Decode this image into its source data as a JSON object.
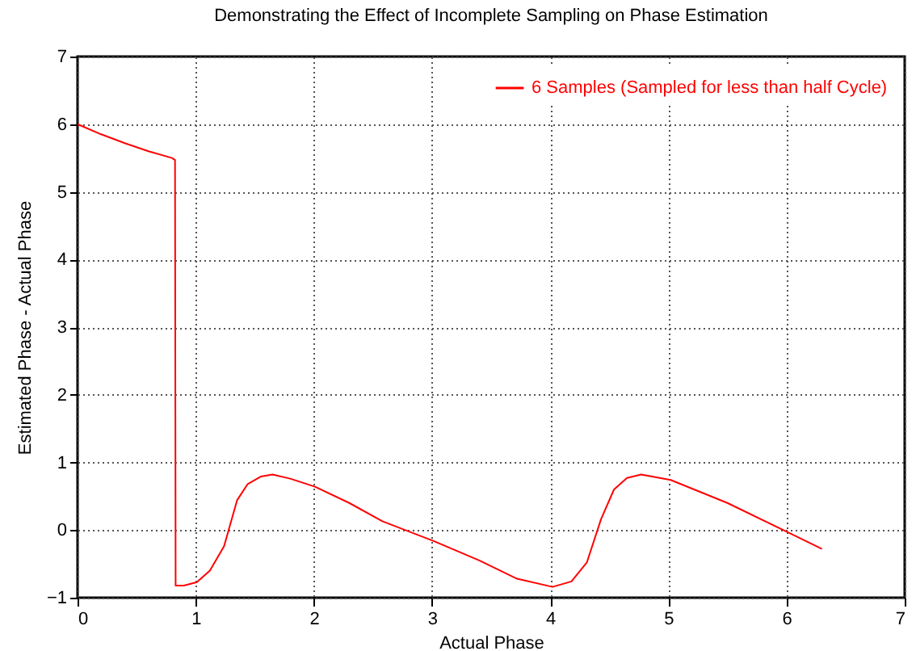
{
  "chart_data": {
    "type": "line",
    "title": "Demonstrating the Effect of Incomplete Sampling on Phase Estimation",
    "xlabel": "Actual Phase",
    "ylabel": "Estimated Phase - Actual Phase",
    "x": [
      0,
      0.2,
      0.4,
      0.6,
      0.8,
      0.825,
      0.83,
      0.9,
      1.01,
      1.12,
      1.24,
      1.35,
      1.44,
      1.55,
      1.65,
      1.8,
      2.01,
      2.3,
      2.58,
      3.01,
      3.4,
      3.72,
      4.02,
      4.18,
      4.31,
      4.43,
      4.54,
      4.65,
      4.77,
      5.02,
      5.5,
      6.02,
      6.3
    ],
    "series": [
      {
        "name": "6 Samples (Sampled for less than half Cycle)",
        "color": "#ff0000",
        "values": [
          6.0,
          5.85,
          5.72,
          5.6,
          5.5,
          5.47,
          -0.82,
          -0.82,
          -0.77,
          -0.6,
          -0.24,
          0.44,
          0.68,
          0.79,
          0.82,
          0.76,
          0.64,
          0.4,
          0.13,
          -0.16,
          -0.45,
          -0.72,
          -0.84,
          -0.76,
          -0.48,
          0.16,
          0.6,
          0.77,
          0.82,
          0.74,
          0.4,
          -0.04,
          -0.28
        ]
      }
    ],
    "xlim": [
      0,
      7
    ],
    "xticks": [
      0,
      1,
      2,
      3,
      4,
      5,
      6,
      7
    ],
    "ylim": [
      -1,
      7
    ],
    "yticks": [
      -1,
      0,
      1,
      2,
      3,
      4,
      5,
      6,
      7
    ],
    "grid": true,
    "legend": "top right",
    "line_style": "solid",
    "marker": "none"
  }
}
